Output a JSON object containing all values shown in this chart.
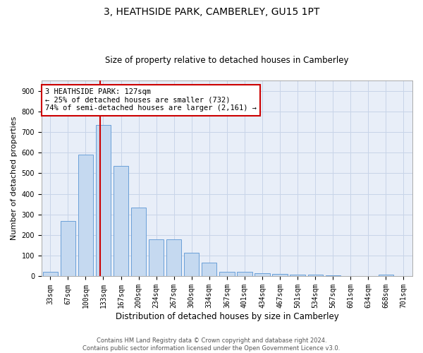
{
  "title": "3, HEATHSIDE PARK, CAMBERLEY, GU15 1PT",
  "subtitle": "Size of property relative to detached houses in Camberley",
  "xlabel": "Distribution of detached houses by size in Camberley",
  "ylabel": "Number of detached properties",
  "bar_labels": [
    "33sqm",
    "67sqm",
    "100sqm",
    "133sqm",
    "167sqm",
    "200sqm",
    "234sqm",
    "267sqm",
    "300sqm",
    "334sqm",
    "367sqm",
    "401sqm",
    "434sqm",
    "467sqm",
    "501sqm",
    "534sqm",
    "567sqm",
    "601sqm",
    "634sqm",
    "668sqm",
    "701sqm"
  ],
  "bar_values": [
    22,
    270,
    590,
    735,
    535,
    335,
    178,
    178,
    115,
    68,
    22,
    22,
    14,
    12,
    9,
    8,
    6,
    0,
    0,
    7,
    0
  ],
  "bar_color": "#c5d9f0",
  "bar_edge_color": "#6a9fd8",
  "vline_color": "#cc0000",
  "grid_color": "#c8d4e8",
  "background_color": "#e8eef8",
  "ylim": [
    0,
    950
  ],
  "yticks": [
    0,
    100,
    200,
    300,
    400,
    500,
    600,
    700,
    800,
    900
  ],
  "annotation_box_edge_color": "#cc0000",
  "annotation_box_fill": "#ffffff",
  "property_line_label": "3 HEATHSIDE PARK: 127sqm",
  "annotation_line1": "← 25% of detached houses are smaller (732)",
  "annotation_line2": "74% of semi-detached houses are larger (2,161) →",
  "footer_line1": "Contains HM Land Registry data © Crown copyright and database right 2024.",
  "footer_line2": "Contains public sector information licensed under the Open Government Licence v3.0.",
  "title_fontsize": 10,
  "subtitle_fontsize": 8.5,
  "ylabel_fontsize": 8,
  "xlabel_fontsize": 8.5,
  "tick_fontsize": 7,
  "annotation_fontsize": 7.5,
  "footer_fontsize": 6
}
